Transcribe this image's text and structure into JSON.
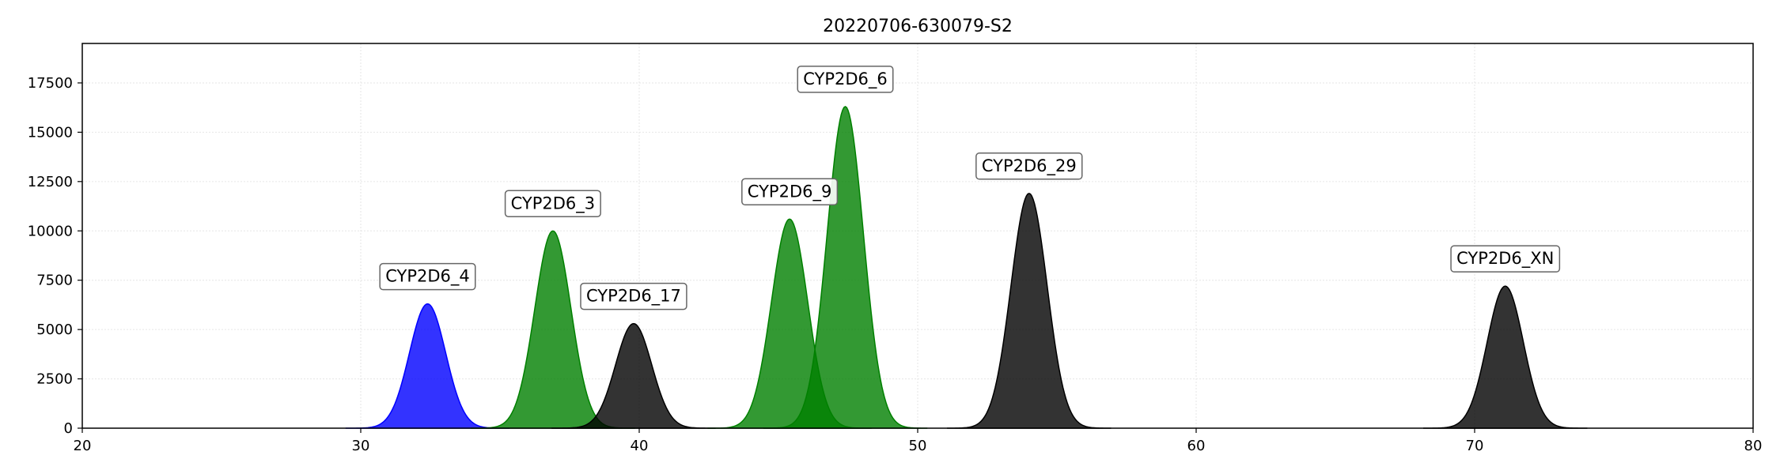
{
  "chart_data": {
    "type": "area",
    "title": "20220706-630079-S2",
    "xlabel": "",
    "ylabel": "",
    "xlim": [
      20,
      80
    ],
    "ylim": [
      0,
      19500
    ],
    "x_ticks": [
      20,
      30,
      40,
      50,
      60,
      70,
      80
    ],
    "y_ticks": [
      0,
      2500,
      5000,
      7500,
      10000,
      12500,
      15000,
      17500
    ],
    "grid": true,
    "colors": {
      "blue": "#0000ff",
      "green": "#008000",
      "black": "#000000"
    },
    "peaks": [
      {
        "label": "CYP2D6_4",
        "center": 32.4,
        "height": 6300,
        "sigma": 0.65,
        "color": "blue"
      },
      {
        "label": "CYP2D6_3",
        "center": 36.9,
        "height": 10000,
        "sigma": 0.65,
        "color": "green"
      },
      {
        "label": "CYP2D6_17",
        "center": 39.8,
        "height": 5300,
        "sigma": 0.65,
        "color": "black"
      },
      {
        "label": "CYP2D6_9",
        "center": 45.4,
        "height": 10600,
        "sigma": 0.65,
        "color": "green"
      },
      {
        "label": "CYP2D6_6",
        "center": 47.4,
        "height": 16300,
        "sigma": 0.65,
        "color": "green"
      },
      {
        "label": "CYP2D6_29",
        "center": 54.0,
        "height": 11900,
        "sigma": 0.65,
        "color": "black"
      },
      {
        "label": "CYP2D6_XN",
        "center": 71.1,
        "height": 7200,
        "sigma": 0.65,
        "color": "black"
      }
    ]
  }
}
